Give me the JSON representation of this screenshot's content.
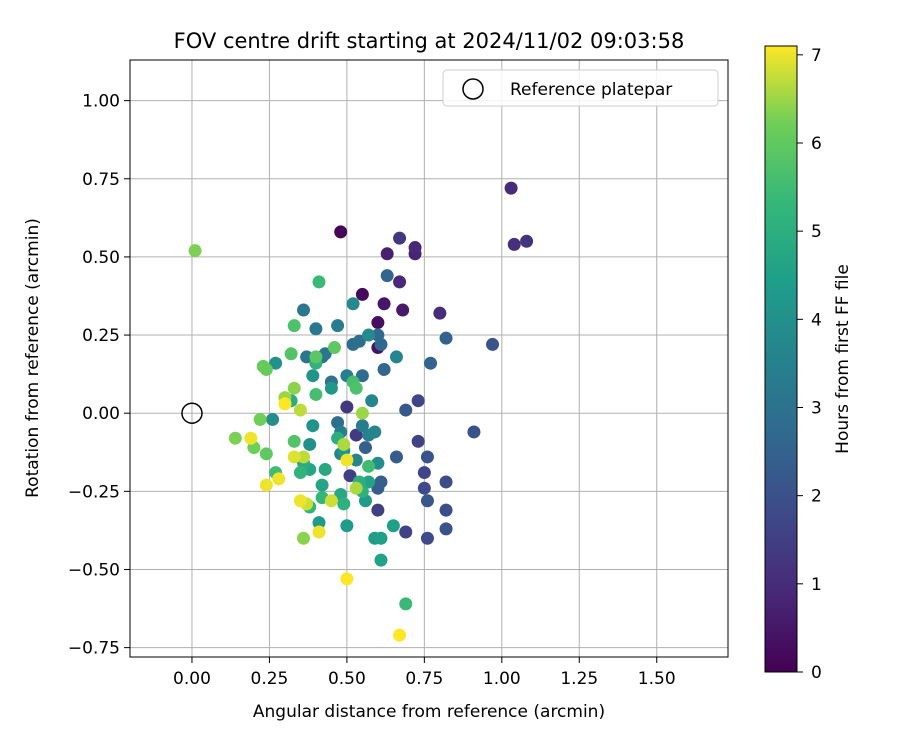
{
  "chart_data": {
    "type": "scatter",
    "title": "FOV centre drift starting at 2024/11/02 09:03:58",
    "xlabel": "Angular distance from reference (arcmin)",
    "ylabel": "Rotation from reference (arcmin)",
    "xlim": [
      -0.2,
      1.73
    ],
    "ylim": [
      -0.78,
      1.13
    ],
    "x_ticks": [
      0.0,
      0.25,
      0.5,
      0.75,
      1.0,
      1.25,
      1.5
    ],
    "x_tick_labels": [
      "0.00",
      "0.25",
      "0.50",
      "0.75",
      "1.00",
      "1.25",
      "1.50"
    ],
    "y_ticks": [
      -0.75,
      -0.5,
      -0.25,
      0.0,
      0.25,
      0.5,
      0.75,
      1.0
    ],
    "y_tick_labels": [
      "−0.75",
      "−0.50",
      "−0.25",
      "0.00",
      "0.25",
      "0.50",
      "0.75",
      "1.00"
    ],
    "grid": true,
    "legend": {
      "placement": "top-right",
      "entries": [
        "Reference platepar"
      ]
    },
    "colorbar": {
      "label": "Hours from first FF file",
      "colormap": "viridis",
      "range": [
        0,
        7.1
      ],
      "ticks": [
        0,
        1,
        2,
        3,
        4,
        5,
        6,
        7
      ],
      "tick_labels": [
        "0",
        "1",
        "2",
        "3",
        "4",
        "5",
        "6",
        "7"
      ]
    },
    "reference_point": {
      "x": 0.0,
      "y": 0.0
    },
    "points": [
      {
        "x": 0.48,
        "y": 0.58,
        "hours": 0.1
      },
      {
        "x": 0.55,
        "y": 0.38,
        "hours": 0.2
      },
      {
        "x": 0.6,
        "y": 0.29,
        "hours": 0.3
      },
      {
        "x": 0.6,
        "y": 0.21,
        "hours": 0.4
      },
      {
        "x": 0.62,
        "y": 0.35,
        "hours": 0.5
      },
      {
        "x": 0.68,
        "y": 0.33,
        "hours": 0.6
      },
      {
        "x": 0.63,
        "y": 0.51,
        "hours": 0.7
      },
      {
        "x": 0.72,
        "y": 0.51,
        "hours": 0.8
      },
      {
        "x": 0.72,
        "y": 0.53,
        "hours": 0.9
      },
      {
        "x": 0.67,
        "y": 0.42,
        "hours": 0.9
      },
      {
        "x": 0.8,
        "y": 0.32,
        "hours": 1.0
      },
      {
        "x": 1.03,
        "y": 0.72,
        "hours": 1.0
      },
      {
        "x": 1.04,
        "y": 0.54,
        "hours": 1.1
      },
      {
        "x": 1.08,
        "y": 0.55,
        "hours": 1.2
      },
      {
        "x": 0.67,
        "y": 0.56,
        "hours": 1.3
      },
      {
        "x": 0.5,
        "y": 0.02,
        "hours": 1.3
      },
      {
        "x": 0.53,
        "y": -0.07,
        "hours": 1.4
      },
      {
        "x": 0.51,
        "y": -0.2,
        "hours": 1.5
      },
      {
        "x": 0.6,
        "y": -0.31,
        "hours": 1.5
      },
      {
        "x": 0.69,
        "y": -0.38,
        "hours": 1.6
      },
      {
        "x": 0.73,
        "y": -0.09,
        "hours": 1.6
      },
      {
        "x": 0.73,
        "y": 0.04,
        "hours": 1.7
      },
      {
        "x": 0.75,
        "y": -0.19,
        "hours": 1.7
      },
      {
        "x": 0.75,
        "y": -0.24,
        "hours": 1.8
      },
      {
        "x": 0.76,
        "y": -0.4,
        "hours": 1.8
      },
      {
        "x": 0.82,
        "y": -0.22,
        "hours": 1.9
      },
      {
        "x": 0.82,
        "y": -0.31,
        "hours": 1.9
      },
      {
        "x": 0.82,
        "y": -0.37,
        "hours": 2.0
      },
      {
        "x": 0.91,
        "y": -0.06,
        "hours": 2.0
      },
      {
        "x": 0.97,
        "y": 0.22,
        "hours": 2.1
      },
      {
        "x": 0.76,
        "y": -0.14,
        "hours": 2.1
      },
      {
        "x": 0.76,
        "y": -0.28,
        "hours": 2.2
      },
      {
        "x": 0.69,
        "y": 0.01,
        "hours": 2.2
      },
      {
        "x": 0.66,
        "y": -0.14,
        "hours": 2.3
      },
      {
        "x": 0.6,
        "y": -0.24,
        "hours": 2.3
      },
      {
        "x": 0.61,
        "y": -0.22,
        "hours": 2.4
      },
      {
        "x": 0.56,
        "y": -0.11,
        "hours": 2.4
      },
      {
        "x": 0.77,
        "y": 0.16,
        "hours": 2.5
      },
      {
        "x": 0.82,
        "y": 0.24,
        "hours": 2.5
      },
      {
        "x": 0.62,
        "y": 0.14,
        "hours": 2.6
      },
      {
        "x": 0.63,
        "y": 0.44,
        "hours": 2.6
      },
      {
        "x": 0.6,
        "y": 0.25,
        "hours": 2.7
      },
      {
        "x": 0.61,
        "y": 0.22,
        "hours": 2.7
      },
      {
        "x": 0.55,
        "y": 0.12,
        "hours": 2.8
      },
      {
        "x": 0.52,
        "y": 0.22,
        "hours": 2.8
      },
      {
        "x": 0.54,
        "y": 0.23,
        "hours": 2.9
      },
      {
        "x": 0.47,
        "y": -0.03,
        "hours": 2.9
      },
      {
        "x": 0.45,
        "y": 0.1,
        "hours": 3.0
      },
      {
        "x": 0.42,
        "y": 0.18,
        "hours": 3.0
      },
      {
        "x": 0.43,
        "y": 0.19,
        "hours": 3.1
      },
      {
        "x": 0.37,
        "y": 0.18,
        "hours": 3.1
      },
      {
        "x": 0.36,
        "y": 0.33,
        "hours": 3.2
      },
      {
        "x": 0.4,
        "y": 0.27,
        "hours": 3.2
      },
      {
        "x": 0.47,
        "y": 0.28,
        "hours": 3.3
      },
      {
        "x": 0.55,
        "y": -0.04,
        "hours": 3.3
      },
      {
        "x": 0.48,
        "y": -0.06,
        "hours": 3.4
      },
      {
        "x": 0.5,
        "y": 0.12,
        "hours": 3.4
      },
      {
        "x": 0.57,
        "y": -0.07,
        "hours": 3.5
      },
      {
        "x": 0.48,
        "y": -0.13,
        "hours": 3.5
      },
      {
        "x": 0.53,
        "y": -0.15,
        "hours": 3.6
      },
      {
        "x": 0.59,
        "y": -0.06,
        "hours": 3.6
      },
      {
        "x": 0.66,
        "y": 0.18,
        "hours": 3.7
      },
      {
        "x": 0.58,
        "y": 0.04,
        "hours": 3.7
      },
      {
        "x": 0.52,
        "y": 0.35,
        "hours": 3.8
      },
      {
        "x": 0.57,
        "y": 0.25,
        "hours": 3.8
      },
      {
        "x": 0.6,
        "y": -0.16,
        "hours": 3.9
      },
      {
        "x": 0.26,
        "y": -0.02,
        "hours": 3.9
      },
      {
        "x": 0.27,
        "y": 0.16,
        "hours": 4.0
      },
      {
        "x": 0.38,
        "y": -0.1,
        "hours": 4.0
      },
      {
        "x": 0.39,
        "y": 0.12,
        "hours": 4.1
      },
      {
        "x": 0.39,
        "y": -0.04,
        "hours": 4.1
      },
      {
        "x": 0.45,
        "y": 0.08,
        "hours": 4.2
      },
      {
        "x": 0.49,
        "y": -0.12,
        "hours": 4.2
      },
      {
        "x": 0.41,
        "y": -0.35,
        "hours": 4.3
      },
      {
        "x": 0.5,
        "y": -0.36,
        "hours": 4.3
      },
      {
        "x": 0.56,
        "y": -0.28,
        "hours": 4.4
      },
      {
        "x": 0.59,
        "y": -0.4,
        "hours": 4.4
      },
      {
        "x": 0.61,
        "y": -0.4,
        "hours": 4.5
      },
      {
        "x": 0.65,
        "y": -0.36,
        "hours": 4.5
      },
      {
        "x": 0.61,
        "y": -0.47,
        "hours": 4.6
      },
      {
        "x": 0.57,
        "y": -0.22,
        "hours": 4.6
      },
      {
        "x": 0.42,
        "y": -0.23,
        "hours": 4.7
      },
      {
        "x": 0.38,
        "y": -0.18,
        "hours": 4.7
      },
      {
        "x": 0.48,
        "y": -0.26,
        "hours": 4.8
      },
      {
        "x": 0.43,
        "y": -0.18,
        "hours": 4.8
      },
      {
        "x": 0.36,
        "y": -0.16,
        "hours": 4.9
      },
      {
        "x": 0.32,
        "y": 0.04,
        "hours": 4.9
      },
      {
        "x": 0.47,
        "y": -0.08,
        "hours": 5.0
      },
      {
        "x": 0.54,
        "y": -0.22,
        "hours": 5.0
      },
      {
        "x": 0.55,
        "y": -0.25,
        "hours": 5.1
      },
      {
        "x": 0.49,
        "y": -0.29,
        "hours": 5.1
      },
      {
        "x": 0.4,
        "y": 0.16,
        "hours": 5.2
      },
      {
        "x": 0.35,
        "y": -0.19,
        "hours": 5.2
      },
      {
        "x": 0.38,
        "y": -0.3,
        "hours": 5.3
      },
      {
        "x": 0.42,
        "y": -0.27,
        "hours": 5.3
      },
      {
        "x": 0.41,
        "y": 0.42,
        "hours": 5.4
      },
      {
        "x": 0.69,
        "y": -0.61,
        "hours": 5.4
      },
      {
        "x": 0.57,
        "y": -0.17,
        "hours": 5.5
      },
      {
        "x": 0.27,
        "y": -0.19,
        "hours": 5.5
      },
      {
        "x": 0.4,
        "y": 0.06,
        "hours": 5.6
      },
      {
        "x": 0.52,
        "y": 0.1,
        "hours": 5.6
      },
      {
        "x": 0.53,
        "y": 0.08,
        "hours": 5.7
      },
      {
        "x": 0.33,
        "y": 0.28,
        "hours": 5.7
      },
      {
        "x": 0.33,
        "y": -0.09,
        "hours": 5.8
      },
      {
        "x": 0.32,
        "y": 0.19,
        "hours": 5.8
      },
      {
        "x": 0.4,
        "y": 0.18,
        "hours": 5.9
      },
      {
        "x": 0.46,
        "y": 0.21,
        "hours": 6.0
      },
      {
        "x": 0.24,
        "y": -0.13,
        "hours": 6.0
      },
      {
        "x": 0.24,
        "y": 0.14,
        "hours": 6.1
      },
      {
        "x": 0.23,
        "y": 0.15,
        "hours": 6.1
      },
      {
        "x": 0.2,
        "y": -0.11,
        "hours": 6.2
      },
      {
        "x": 0.22,
        "y": -0.02,
        "hours": 6.2
      },
      {
        "x": 0.14,
        "y": -0.08,
        "hours": 6.3
      },
      {
        "x": 0.01,
        "y": 0.52,
        "hours": 6.3
      },
      {
        "x": 0.33,
        "y": 0.08,
        "hours": 6.4
      },
      {
        "x": 0.36,
        "y": -0.4,
        "hours": 6.4
      },
      {
        "x": 0.3,
        "y": 0.05,
        "hours": 6.5
      },
      {
        "x": 0.55,
        "y": 0.0,
        "hours": 6.5
      },
      {
        "x": 0.53,
        "y": -0.24,
        "hours": 6.6
      },
      {
        "x": 0.49,
        "y": -0.1,
        "hours": 6.6
      },
      {
        "x": 0.36,
        "y": -0.14,
        "hours": 6.7
      },
      {
        "x": 0.35,
        "y": 0.01,
        "hours": 6.7
      },
      {
        "x": 0.45,
        "y": -0.28,
        "hours": 6.8
      },
      {
        "x": 0.37,
        "y": -0.29,
        "hours": 6.8
      },
      {
        "x": 0.3,
        "y": 0.03,
        "hours": 6.9
      },
      {
        "x": 0.33,
        "y": -0.14,
        "hours": 6.9
      },
      {
        "x": 0.28,
        "y": -0.21,
        "hours": 7.0
      },
      {
        "x": 0.24,
        "y": -0.23,
        "hours": 7.0
      },
      {
        "x": 0.19,
        "y": -0.08,
        "hours": 7.0
      },
      {
        "x": 0.35,
        "y": -0.28,
        "hours": 7.0
      },
      {
        "x": 0.41,
        "y": -0.38,
        "hours": 7.0
      },
      {
        "x": 0.5,
        "y": -0.15,
        "hours": 7.0
      },
      {
        "x": 0.5,
        "y": -0.53,
        "hours": 7.1
      },
      {
        "x": 0.67,
        "y": -0.71,
        "hours": 7.1
      },
      {
        "x": 0.3,
        "y": 0.03,
        "hours": 7.1
      }
    ]
  }
}
